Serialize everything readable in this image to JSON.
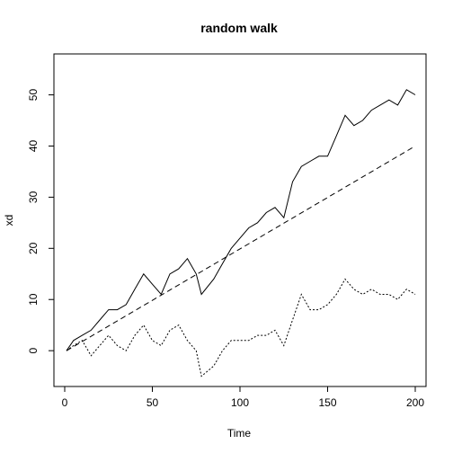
{
  "chart_data": {
    "type": "line",
    "title": "random walk",
    "xlabel": "Time",
    "ylabel": "xd",
    "xlim": [
      0,
      200
    ],
    "ylim": [
      -7,
      58
    ],
    "x_ticks": [
      0,
      50,
      100,
      150,
      200
    ],
    "y_ticks": [
      0,
      10,
      20,
      30,
      40,
      50
    ],
    "grid": false,
    "legend": "none",
    "series": [
      {
        "line_style": "solid",
        "color": "#000000",
        "x": [
          1,
          5,
          10,
          15,
          20,
          25,
          30,
          35,
          40,
          45,
          50,
          55,
          60,
          65,
          70,
          75,
          78,
          85,
          90,
          95,
          100,
          105,
          110,
          115,
          120,
          125,
          130,
          135,
          140,
          145,
          150,
          155,
          160,
          165,
          170,
          175,
          180,
          185,
          190,
          195,
          200
        ],
        "y": [
          0,
          2,
          3,
          4,
          6,
          8,
          8,
          9,
          12,
          15,
          13,
          11,
          15,
          16,
          18,
          15,
          11,
          14,
          17,
          20,
          22,
          24,
          25,
          27,
          28,
          26,
          33,
          36,
          37,
          38,
          38,
          42,
          46,
          44,
          45,
          47,
          48,
          49,
          48,
          51,
          50
        ]
      },
      {
        "line_style": "dashed",
        "color": "#000000",
        "x": [
          1,
          200
        ],
        "y": [
          0,
          40
        ]
      },
      {
        "line_style": "dotted",
        "color": "#000000",
        "x": [
          1,
          5,
          10,
          15,
          20,
          25,
          30,
          35,
          40,
          45,
          50,
          55,
          60,
          65,
          70,
          75,
          78,
          85,
          90,
          95,
          100,
          105,
          110,
          115,
          120,
          125,
          130,
          135,
          140,
          145,
          150,
          155,
          160,
          165,
          170,
          175,
          180,
          185,
          190,
          195,
          200
        ],
        "y": [
          0,
          1,
          2,
          -1,
          1,
          3,
          1,
          0,
          3,
          5,
          2,
          1,
          4,
          5,
          2,
          0,
          -5,
          -3,
          0,
          2,
          2,
          2,
          3,
          3,
          4,
          1,
          6,
          11,
          8,
          8,
          9,
          11,
          14,
          12,
          11,
          12,
          11,
          11,
          10,
          12,
          11
        ]
      }
    ]
  }
}
